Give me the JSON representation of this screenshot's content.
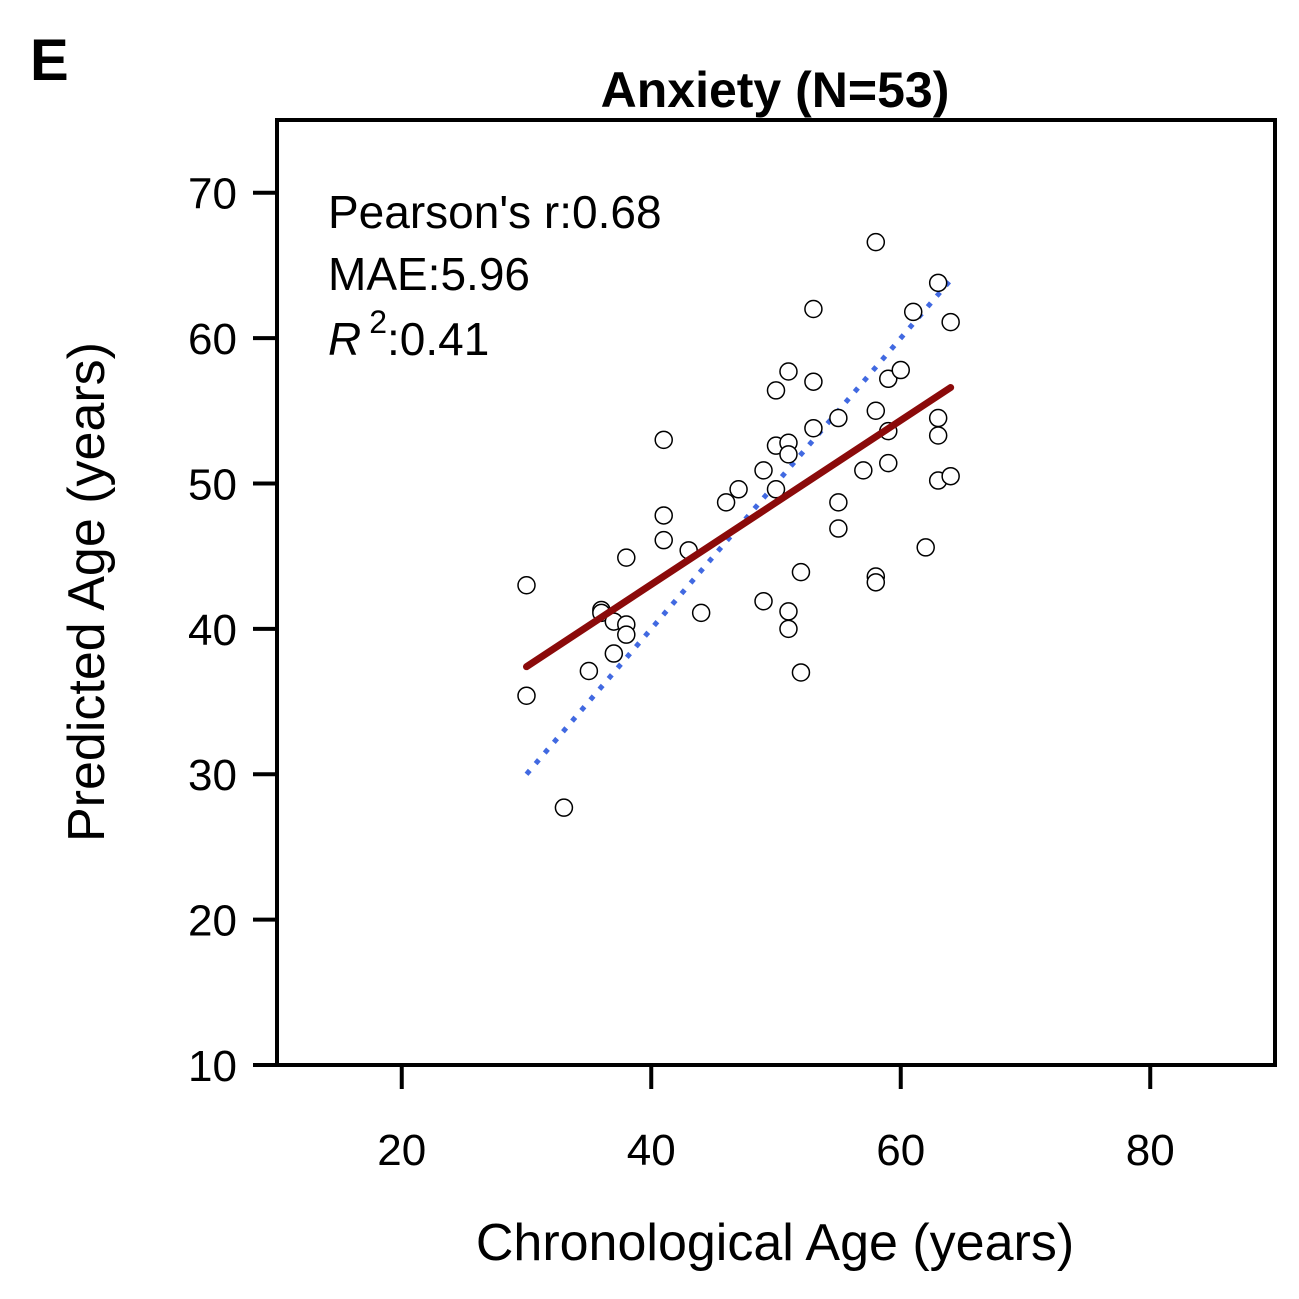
{
  "panel_label": "E",
  "chart_data": {
    "type": "scatter",
    "title": "Anxiety (N=53)",
    "xlabel": "Chronological Age (years)",
    "ylabel": "Predicted Age (years)",
    "xlim": [
      10,
      90
    ],
    "ylim": [
      10,
      75
    ],
    "xticks": [
      20,
      40,
      60,
      80
    ],
    "yticks": [
      10,
      20,
      30,
      40,
      50,
      60,
      70
    ],
    "grid": false,
    "annotations": {
      "pearson": "Pearson's r:0.68",
      "mae": "MAE:5.96",
      "r2_symbol": "R",
      "r2_exponent": "2",
      "r2_value": ":0.41"
    },
    "points": [
      {
        "x": 30,
        "y": 43.0
      },
      {
        "x": 30,
        "y": 35.4
      },
      {
        "x": 33,
        "y": 27.7
      },
      {
        "x": 35,
        "y": 37.1
      },
      {
        "x": 36,
        "y": 41.3
      },
      {
        "x": 36,
        "y": 41.1
      },
      {
        "x": 37,
        "y": 40.5
      },
      {
        "x": 37,
        "y": 38.3
      },
      {
        "x": 38,
        "y": 40.3
      },
      {
        "x": 38,
        "y": 39.6
      },
      {
        "x": 38,
        "y": 44.9
      },
      {
        "x": 41,
        "y": 53.0
      },
      {
        "x": 41,
        "y": 47.8
      },
      {
        "x": 41,
        "y": 46.1
      },
      {
        "x": 43,
        "y": 45.4
      },
      {
        "x": 44,
        "y": 41.1
      },
      {
        "x": 46,
        "y": 48.7
      },
      {
        "x": 47,
        "y": 49.6
      },
      {
        "x": 49,
        "y": 50.9
      },
      {
        "x": 49,
        "y": 41.9
      },
      {
        "x": 50,
        "y": 52.6
      },
      {
        "x": 50,
        "y": 49.6
      },
      {
        "x": 50,
        "y": 56.4
      },
      {
        "x": 51,
        "y": 57.7
      },
      {
        "x": 51,
        "y": 52.8
      },
      {
        "x": 51,
        "y": 52.0
      },
      {
        "x": 51,
        "y": 41.2
      },
      {
        "x": 51,
        "y": 40.0
      },
      {
        "x": 52,
        "y": 43.9
      },
      {
        "x": 52,
        "y": 37.0
      },
      {
        "x": 53,
        "y": 62.0
      },
      {
        "x": 53,
        "y": 57.0
      },
      {
        "x": 53,
        "y": 53.8
      },
      {
        "x": 55,
        "y": 54.5
      },
      {
        "x": 55,
        "y": 48.7
      },
      {
        "x": 55,
        "y": 46.9
      },
      {
        "x": 57,
        "y": 50.9
      },
      {
        "x": 58,
        "y": 66.6
      },
      {
        "x": 58,
        "y": 55.0
      },
      {
        "x": 58,
        "y": 43.6
      },
      {
        "x": 58,
        "y": 43.2
      },
      {
        "x": 59,
        "y": 57.2
      },
      {
        "x": 59,
        "y": 53.6
      },
      {
        "x": 59,
        "y": 51.4
      },
      {
        "x": 60,
        "y": 57.8
      },
      {
        "x": 61,
        "y": 61.8
      },
      {
        "x": 62,
        "y": 45.6
      },
      {
        "x": 63,
        "y": 63.8
      },
      {
        "x": 63,
        "y": 54.5
      },
      {
        "x": 63,
        "y": 53.3
      },
      {
        "x": 63,
        "y": 50.2
      },
      {
        "x": 64,
        "y": 61.1
      },
      {
        "x": 64,
        "y": 50.5
      }
    ],
    "regression_line": {
      "x": [
        30,
        64
      ],
      "y": [
        37.4,
        56.6
      ],
      "color": "#8b0a0a"
    },
    "identity_line": {
      "x": [
        30,
        64
      ],
      "y": [
        30,
        64
      ],
      "color": "#4169e1",
      "style": "dotted"
    },
    "marker": {
      "fill": "#ffffff",
      "edge": "#000000"
    }
  }
}
